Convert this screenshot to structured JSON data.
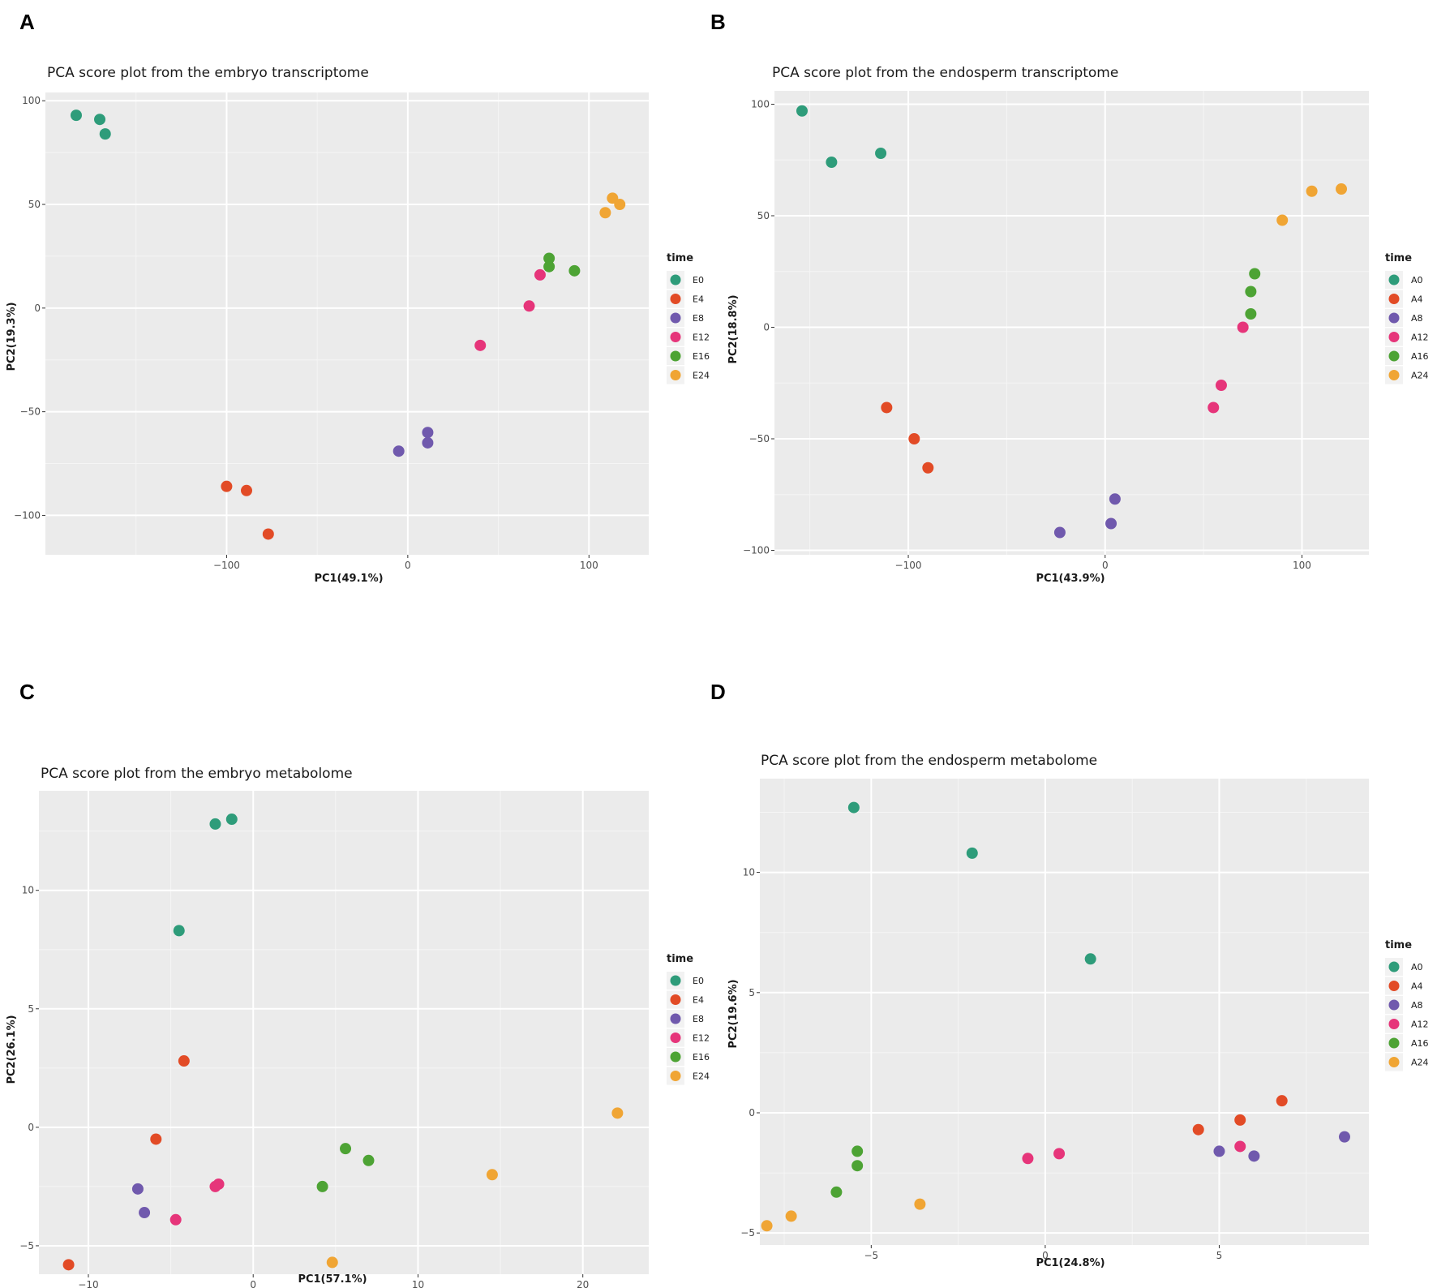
{
  "chart_data": [
    {
      "panel": "A",
      "type": "scatter",
      "title": "PCA score plot from the embryo transcriptome",
      "xlabel": "PC1(49.1%)",
      "ylabel": "PC2(19.3%)",
      "xlim": [
        -200,
        133
      ],
      "ylim": [
        -119,
        104
      ],
      "xticks": [
        -100,
        0,
        100
      ],
      "yticks": [
        -100,
        -50,
        0,
        50,
        100
      ],
      "xtick_labels": [
        "−100",
        "0",
        "100"
      ],
      "ytick_labels": [
        "−100",
        "−50",
        "0",
        "50",
        "100"
      ],
      "legend_title": "time",
      "series": [
        {
          "name": "E0",
          "color": "#2e9c7a",
          "points": [
            [
              -183,
              93
            ],
            [
              -170,
              91
            ],
            [
              -167,
              84
            ]
          ]
        },
        {
          "name": "E4",
          "color": "#e24b26",
          "points": [
            [
              -100,
              -86
            ],
            [
              -89,
              -88
            ],
            [
              -77,
              -109
            ]
          ]
        },
        {
          "name": "E8",
          "color": "#7059ad",
          "points": [
            [
              -5,
              -69
            ],
            [
              11,
              -60
            ],
            [
              11,
              -65
            ]
          ]
        },
        {
          "name": "E12",
          "color": "#e6357a",
          "points": [
            [
              40,
              -18
            ],
            [
              67,
              1
            ],
            [
              73,
              16
            ]
          ]
        },
        {
          "name": "E16",
          "color": "#4da334",
          "points": [
            [
              78,
              24
            ],
            [
              78,
              20
            ],
            [
              92,
              18
            ]
          ]
        },
        {
          "name": "E24",
          "color": "#f0a534",
          "points": [
            [
              109,
              46
            ],
            [
              113,
              53
            ],
            [
              117,
              50
            ]
          ]
        }
      ]
    },
    {
      "panel": "B",
      "type": "scatter",
      "title": "PCA score plot from the endosperm transcriptome",
      "xlabel": "PC1(43.9%)",
      "ylabel": "PC2(18.8%)",
      "xlim": [
        -168,
        134
      ],
      "ylim": [
        -102,
        106
      ],
      "xticks": [
        -100,
        0,
        100
      ],
      "yticks": [
        -100,
        -50,
        0,
        50,
        100
      ],
      "xtick_labels": [
        "−100",
        "0",
        "100"
      ],
      "ytick_labels": [
        "−100",
        "−50",
        "0",
        "50",
        "100"
      ],
      "legend_title": "time",
      "series": [
        {
          "name": "A0",
          "color": "#2e9c7a",
          "points": [
            [
              -154,
              97
            ],
            [
              -139,
              74
            ],
            [
              -114,
              78
            ]
          ]
        },
        {
          "name": "A4",
          "color": "#e24b26",
          "points": [
            [
              -111,
              -36
            ],
            [
              -97,
              -50
            ],
            [
              -90,
              -63
            ]
          ]
        },
        {
          "name": "A8",
          "color": "#7059ad",
          "points": [
            [
              -23,
              -92
            ],
            [
              3,
              -88
            ],
            [
              5,
              -77
            ]
          ]
        },
        {
          "name": "A12",
          "color": "#e6357a",
          "points": [
            [
              55,
              -36
            ],
            [
              59,
              -26
            ],
            [
              70,
              0
            ]
          ]
        },
        {
          "name": "A16",
          "color": "#4da334",
          "points": [
            [
              74,
              6
            ],
            [
              74,
              16
            ],
            [
              76,
              24
            ]
          ]
        },
        {
          "name": "A24",
          "color": "#f0a534",
          "points": [
            [
              90,
              48
            ],
            [
              105,
              61
            ],
            [
              120,
              62
            ]
          ]
        }
      ]
    },
    {
      "panel": "C",
      "type": "scatter",
      "title": "PCA score plot from the embryo metabolome",
      "xlabel": "PC1(57.1%)",
      "ylabel": "PC2(26.1%)",
      "xlim": [
        -13,
        24
      ],
      "ylim": [
        -6.2,
        14.2
      ],
      "xticks": [
        -10,
        0,
        10,
        20
      ],
      "yticks": [
        -5,
        0,
        5,
        10
      ],
      "xtick_labels": [
        "−10",
        "0",
        "10",
        "20"
      ],
      "ytick_labels": [
        "−5",
        "0",
        "5",
        "10"
      ],
      "legend_title": "time",
      "series": [
        {
          "name": "E0",
          "color": "#2e9c7a",
          "points": [
            [
              -2.3,
              12.8
            ],
            [
              -1.3,
              13.0
            ],
            [
              -4.5,
              8.3
            ]
          ]
        },
        {
          "name": "E4",
          "color": "#e24b26",
          "points": [
            [
              -4.2,
              2.8
            ],
            [
              -5.9,
              -0.5
            ],
            [
              -11.2,
              -5.8
            ]
          ]
        },
        {
          "name": "E8",
          "color": "#7059ad",
          "points": [
            [
              -7.0,
              -2.6
            ],
            [
              -6.6,
              -3.6
            ]
          ]
        },
        {
          "name": "E12",
          "color": "#e6357a",
          "points": [
            [
              -2.3,
              -2.5
            ],
            [
              -2.1,
              -2.4
            ],
            [
              -4.7,
              -3.9
            ]
          ]
        },
        {
          "name": "E16",
          "color": "#4da334",
          "points": [
            [
              5.6,
              -0.9
            ],
            [
              7.0,
              -1.4
            ],
            [
              4.2,
              -2.5
            ]
          ]
        },
        {
          "name": "E24",
          "color": "#f0a534",
          "points": [
            [
              22.1,
              0.6
            ],
            [
              14.5,
              -2.0
            ],
            [
              4.8,
              -5.7
            ]
          ]
        }
      ]
    },
    {
      "panel": "D",
      "type": "scatter",
      "title": "PCA score plot from the endosperm metabolome",
      "xlabel": "PC1(24.8%)",
      "ylabel": "PC2(19.6%)",
      "xlim": [
        -8.2,
        9.3
      ],
      "ylim": [
        -5.5,
        13.9
      ],
      "xticks": [
        -5,
        0,
        5
      ],
      "yticks": [
        -5,
        0,
        5,
        10
      ],
      "xtick_labels": [
        "−5",
        "0",
        "5"
      ],
      "ytick_labels": [
        "−5",
        "0",
        "5",
        "10"
      ],
      "legend_title": "time",
      "series": [
        {
          "name": "A0",
          "color": "#2e9c7a",
          "points": [
            [
              -5.5,
              12.7
            ],
            [
              -2.1,
              10.8
            ],
            [
              1.3,
              6.4
            ]
          ]
        },
        {
          "name": "A4",
          "color": "#e24b26",
          "points": [
            [
              4.4,
              -0.7
            ],
            [
              5.6,
              -0.3
            ],
            [
              6.8,
              0.5
            ]
          ]
        },
        {
          "name": "A8",
          "color": "#7059ad",
          "points": [
            [
              5.0,
              -1.6
            ],
            [
              6.0,
              -1.8
            ],
            [
              8.6,
              -1.0
            ]
          ]
        },
        {
          "name": "A12",
          "color": "#e6357a",
          "points": [
            [
              -0.5,
              -1.9
            ],
            [
              0.4,
              -1.7
            ],
            [
              5.6,
              -1.4
            ]
          ]
        },
        {
          "name": "A16",
          "color": "#4da334",
          "points": [
            [
              -5.4,
              -1.6
            ],
            [
              -5.4,
              -2.2
            ],
            [
              -6.0,
              -3.3
            ]
          ]
        },
        {
          "name": "A24",
          "color": "#f0a534",
          "points": [
            [
              -3.6,
              -3.8
            ],
            [
              -7.3,
              -4.3
            ],
            [
              -8.0,
              -4.7
            ]
          ]
        }
      ]
    }
  ]
}
